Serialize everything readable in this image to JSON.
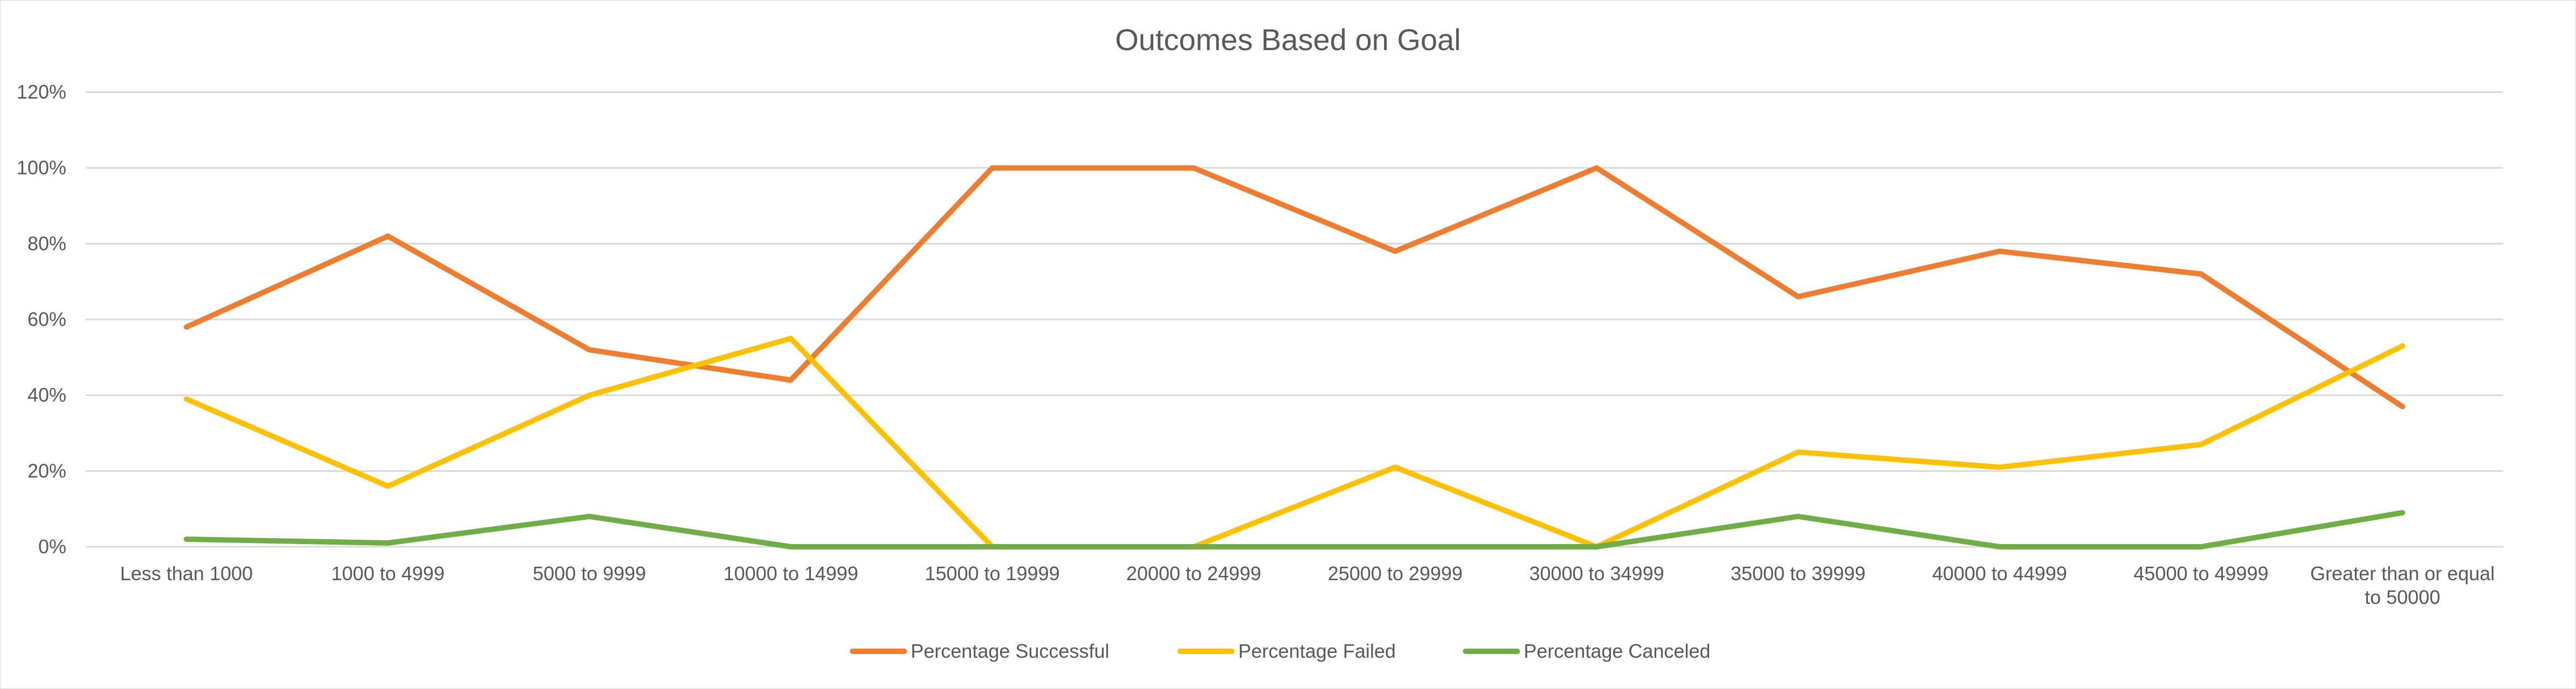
{
  "chart_data": {
    "type": "line",
    "title": "Outcomes Based on Goal",
    "xlabel": "",
    "ylabel": "",
    "ylim": [
      0,
      1.2
    ],
    "yticks": [
      0,
      0.2,
      0.4,
      0.6,
      0.8,
      1.0,
      1.2
    ],
    "ytick_labels": [
      "0%",
      "20%",
      "40%",
      "60%",
      "80%",
      "100%",
      "120%"
    ],
    "categories": [
      "Less than 1000",
      "1000 to 4999",
      "5000 to 9999",
      "10000 to 14999",
      "15000 to 19999",
      "20000 to 24999",
      "25000 to 29999",
      "30000 to 34999",
      "35000 to 39999",
      "40000 to 44999",
      "45000 to 49999",
      "Greater than or equal to 50000"
    ],
    "series": [
      {
        "name": "Percentage Successful",
        "color": "#ED7D31",
        "values": [
          0.58,
          0.82,
          0.52,
          0.44,
          1.0,
          1.0,
          0.78,
          1.0,
          0.66,
          0.78,
          0.72,
          0.37
        ]
      },
      {
        "name": "Percentage Failed",
        "color": "#FFC000",
        "values": [
          0.39,
          0.16,
          0.4,
          0.55,
          0.0,
          0.0,
          0.21,
          0.0,
          0.25,
          0.21,
          0.27,
          0.53
        ]
      },
      {
        "name": "Percentage Canceled",
        "color": "#70AD47",
        "values": [
          0.02,
          0.01,
          0.08,
          0.0,
          0.0,
          0.0,
          0.0,
          0.0,
          0.08,
          0.0,
          0.0,
          0.09
        ]
      }
    ],
    "grid": true,
    "legend_position": "bottom"
  }
}
